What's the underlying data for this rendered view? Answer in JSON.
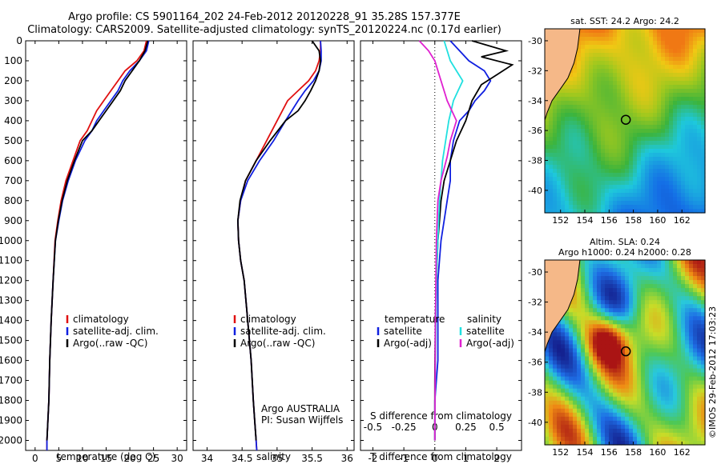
{
  "title": {
    "line1": "Argo profile: CS 5901164_202 24-Feb-2012 20120228_91 35.28S 157.377E",
    "line2": "Climatology: CARS2009. Satellite-adjusted climatology: synTS_20120224.nc (0.17d earlier)"
  },
  "colors": {
    "climatology": "#e01010",
    "satellite": "#1020e0",
    "argo": "#000000",
    "s_satellite": "#20e0e0",
    "s_argo": "#e020d0"
  },
  "depth_ticks": [
    "0",
    "100",
    "200",
    "300",
    "400",
    "500",
    "600",
    "700",
    "800",
    "900",
    "1000",
    "1100",
    "1200",
    "1300",
    "1400",
    "1500",
    "1600",
    "1700",
    "1800",
    "1900",
    "2000"
  ],
  "chart_data": [
    {
      "type": "line",
      "id": "temperature",
      "xlabel": "temperature (deg C)",
      "xlim": [
        -2,
        32
      ],
      "ylim": [
        0,
        2050
      ],
      "xticks": [
        "0",
        "5",
        "10",
        "15",
        "20",
        "25",
        "30"
      ],
      "legend": [
        "climatology",
        "satellite-adj. clim.",
        "Argo(..raw -QC)"
      ],
      "series": [
        {
          "name": "climatology",
          "x": [
            23.5,
            23,
            21.5,
            19,
            17.5,
            16,
            14.5,
            13,
            12,
            11,
            9.5,
            8,
            6.5,
            5.5,
            4.8,
            4.2,
            3.8,
            3.4,
            3.1,
            2.9,
            2.7,
            2.5,
            2.5
          ],
          "y": [
            0,
            50,
            100,
            150,
            200,
            250,
            300,
            350,
            400,
            450,
            500,
            600,
            700,
            800,
            900,
            1000,
            1200,
            1400,
            1600,
            1800,
            1900,
            2000,
            2050
          ]
        },
        {
          "name": "satellite-adj. clim.",
          "x": [
            24,
            23.5,
            22,
            20,
            18.5,
            17.5,
            16,
            14.5,
            13,
            12,
            10.5,
            8.5,
            7,
            5.8,
            5,
            4.3,
            3.8,
            3.4,
            3.1,
            2.9,
            2.7,
            2.5,
            2.5
          ],
          "y": [
            0,
            50,
            100,
            150,
            200,
            250,
            300,
            350,
            400,
            450,
            500,
            600,
            700,
            800,
            900,
            1000,
            1200,
            1400,
            1600,
            1800,
            1900,
            2000,
            2050
          ]
        },
        {
          "name": "Argo(..raw -QC)",
          "x": [
            23.8,
            23.2,
            22,
            20.5,
            19,
            18,
            16.5,
            15,
            13.5,
            12,
            10,
            8.3,
            6.8,
            5.7,
            4.9,
            4.3,
            3.8,
            3.4,
            3.1,
            2.9,
            2.7,
            2.5
          ],
          "y": [
            0,
            50,
            100,
            150,
            200,
            250,
            300,
            350,
            400,
            450,
            500,
            600,
            700,
            800,
            900,
            1000,
            1200,
            1400,
            1600,
            1800,
            1900,
            2000
          ]
        }
      ]
    },
    {
      "type": "line",
      "id": "salinity",
      "xlabel": "salinity",
      "xlim": [
        33.8,
        36.1
      ],
      "ylim": [
        0,
        2050
      ],
      "xticks": [
        "34",
        "34.5",
        "35",
        "35.5",
        "36"
      ],
      "legend": [
        "climatology",
        "satellite-adj. clim.",
        "Argo(..raw -QC)"
      ],
      "note": [
        "Argo AUSTRALIA",
        "PI: Susan Wijffels"
      ],
      "series": [
        {
          "name": "climatology",
          "x": [
            35.62,
            35.62,
            35.6,
            35.55,
            35.45,
            35.3,
            35.15,
            35.0,
            34.85,
            34.7,
            34.55,
            34.48,
            34.44,
            34.45,
            34.48,
            34.53,
            34.58,
            34.63,
            34.66,
            34.68,
            34.7,
            34.71
          ],
          "y": [
            0,
            50,
            100,
            150,
            200,
            250,
            300,
            400,
            500,
            600,
            700,
            800,
            900,
            1000,
            1100,
            1200,
            1400,
            1600,
            1800,
            1900,
            2000,
            2050
          ]
        },
        {
          "name": "satellite-adj. clim.",
          "x": [
            35.62,
            35.63,
            35.63,
            35.6,
            35.52,
            35.4,
            35.3,
            35.12,
            34.95,
            34.75,
            34.58,
            34.48,
            34.44,
            34.45,
            34.48,
            34.53,
            34.58,
            34.63,
            34.66,
            34.68,
            34.7,
            34.71
          ],
          "y": [
            0,
            50,
            100,
            150,
            200,
            250,
            300,
            400,
            500,
            600,
            700,
            800,
            900,
            1000,
            1100,
            1200,
            1400,
            1600,
            1800,
            1900,
            2000,
            2050
          ]
        },
        {
          "name": "Argo(..raw -QC)",
          "x": [
            35.5,
            35.6,
            35.62,
            35.6,
            35.55,
            35.48,
            35.4,
            35.3,
            35.12,
            34.9,
            34.7,
            34.55,
            34.47,
            34.44,
            34.45,
            34.48,
            34.53,
            34.58,
            34.63,
            34.66,
            34.68,
            34.7
          ],
          "y": [
            0,
            50,
            100,
            150,
            200,
            250,
            300,
            350,
            400,
            500,
            600,
            700,
            800,
            900,
            1000,
            1100,
            1200,
            1400,
            1600,
            1800,
            1900,
            2000
          ]
        }
      ]
    },
    {
      "type": "line",
      "id": "difference",
      "xlabel": "T difference from climatology",
      "xlabel_top": "S difference from climatology",
      "xlim": [
        -2.4,
        2.8
      ],
      "ylim": [
        0,
        2050
      ],
      "xticks": [
        "-2",
        "-1",
        "0",
        "1",
        "2"
      ],
      "xticks_top": [
        "-0.5",
        "-0.25",
        "0",
        "0.25",
        "0.5"
      ],
      "legend_t": [
        "temperature",
        "satellite",
        "Argo(-adj)"
      ],
      "legend_s": [
        "salinity",
        "satellite",
        "Argo(-adj)"
      ],
      "series": [
        {
          "name": "satellite",
          "x": [
            0.5,
            0.8,
            1.1,
            1.6,
            1.8,
            1.6,
            1.3,
            1.1,
            0.8,
            0.6,
            0.5,
            0.5,
            0.4,
            0.3,
            0.2,
            0.1,
            0.1,
            0.1,
            0,
            0
          ],
          "y": [
            0,
            50,
            100,
            150,
            200,
            250,
            300,
            350,
            400,
            500,
            600,
            700,
            800,
            900,
            1000,
            1200,
            1400,
            1600,
            1800,
            2000
          ]
        },
        {
          "name": "Argo(-adj)",
          "x": [
            1.2,
            2.3,
            1.5,
            2.5,
            2.0,
            1.5,
            1.2,
            1.0,
            0.7,
            0.5,
            0.3,
            0.2,
            0.15,
            0.1,
            0.05,
            0.02,
            0,
            0
          ],
          "y": [
            0,
            50,
            80,
            120,
            170,
            220,
            300,
            400,
            500,
            600,
            700,
            800,
            900,
            1000,
            1200,
            1400,
            1700,
            2000
          ]
        },
        {
          "name": "salinity satellite",
          "x": [
            0.3,
            0.5,
            0.7,
            0.9,
            0.75,
            0.6,
            0.45,
            0.35,
            0.25,
            0.15,
            0.1,
            0.05,
            0.02,
            0
          ],
          "y": [
            0,
            100,
            150,
            200,
            250,
            300,
            400,
            500,
            600,
            800,
            1000,
            1200,
            1600,
            2000
          ]
        },
        {
          "name": "salinity Argo(-adj)",
          "x": [
            -0.5,
            -0.2,
            0.0,
            0.2,
            0.4,
            0.7,
            0.5,
            0.4,
            0.2,
            0.1,
            0.05,
            0.02,
            0
          ],
          "y": [
            0,
            50,
            100,
            200,
            300,
            400,
            500,
            580,
            700,
            800,
            1000,
            1400,
            2000
          ]
        }
      ]
    }
  ],
  "maps": [
    {
      "title": "sat. SST: 24.2  Argo: 24.2",
      "title_lines": [
        "sat. SST: 24.2  Argo: 24.2"
      ],
      "xticks": [
        "152",
        "154",
        "156",
        "158",
        "160",
        "162"
      ],
      "yticks": [
        "-30",
        "-32",
        "-34",
        "-36",
        "-38",
        "-40"
      ]
    },
    {
      "title_lines": [
        "Altim. SLA: 0.24",
        "Argo h1000: 0.24 h2000: 0.28"
      ],
      "xticks": [
        "152",
        "154",
        "156",
        "158",
        "160",
        "162"
      ],
      "yticks": [
        "-30",
        "-32",
        "-34",
        "-36",
        "-38",
        "-40"
      ]
    }
  ],
  "stamp": "©IMOS 29-Feb-2012 17:03:23"
}
